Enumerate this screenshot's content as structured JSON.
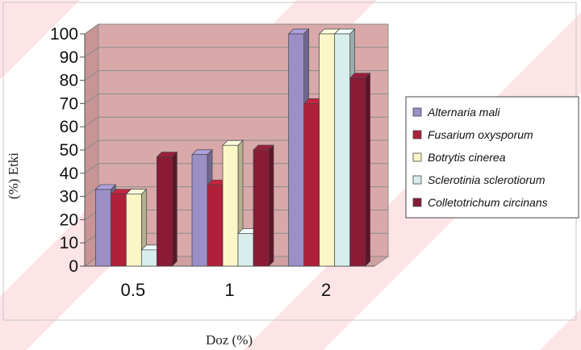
{
  "chart_data": {
    "type": "bar",
    "title": "",
    "xlabel": "Doz (%)",
    "ylabel": "(%) Etki",
    "categories": [
      "0.5",
      "1",
      "2"
    ],
    "ylim": [
      0,
      100
    ],
    "yticks": [
      0,
      10,
      20,
      30,
      40,
      50,
      60,
      70,
      80,
      90,
      100
    ],
    "grid": true,
    "legend_position": "right",
    "series": [
      {
        "name": "Alternaria mali",
        "values": [
          33,
          48,
          100
        ],
        "color": "#9b8fc6"
      },
      {
        "name": "Fusarium oxysporum",
        "values": [
          31,
          35,
          70
        ],
        "color": "#b0203a"
      },
      {
        "name": "Botrytis cinerea",
        "values": [
          31,
          52,
          100
        ],
        "color": "#fbf6c6"
      },
      {
        "name": "Sclerotinia sclerotiorum",
        "values": [
          7,
          14,
          100
        ],
        "color": "#d7eeec"
      },
      {
        "name": "Colletotrichum circinans",
        "values": [
          47,
          50,
          81
        ],
        "color": "#8a1a36"
      }
    ]
  }
}
